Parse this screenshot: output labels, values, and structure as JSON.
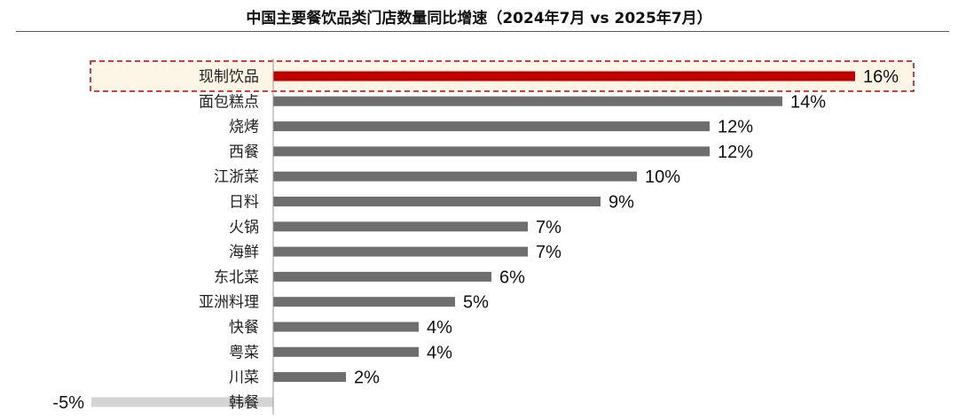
{
  "chart_data": {
    "type": "bar",
    "orientation": "horizontal",
    "title": "中国主要餐饮品类门店数量同比增速（2024年7月 vs 2025年7月）",
    "categories": [
      "现制饮品",
      "面包糕点",
      "烧烤",
      "西餐",
      "江浙菜",
      "日料",
      "火锅",
      "海鲜",
      "东北菜",
      "亚洲料理",
      "快餐",
      "粤菜",
      "川菜",
      "韩餐"
    ],
    "values": [
      16,
      14,
      12,
      12,
      10,
      9,
      7,
      7,
      6,
      5,
      4,
      4,
      2,
      -5
    ],
    "value_labels": [
      "16%",
      "14%",
      "12%",
      "12%",
      "10%",
      "9%",
      "7%",
      "7%",
      "6%",
      "5%",
      "4%",
      "4%",
      "2%",
      "-5%"
    ],
    "highlight_category": "现制饮品",
    "unit": "%",
    "xlim": [
      -5,
      16
    ],
    "colors": {
      "highlight": "#c00000",
      "positive": "#6e6e6e",
      "negative": "#d4d4d4",
      "highlight_box_fill": "#fdf6e6",
      "highlight_box_border": "#c00000"
    }
  }
}
